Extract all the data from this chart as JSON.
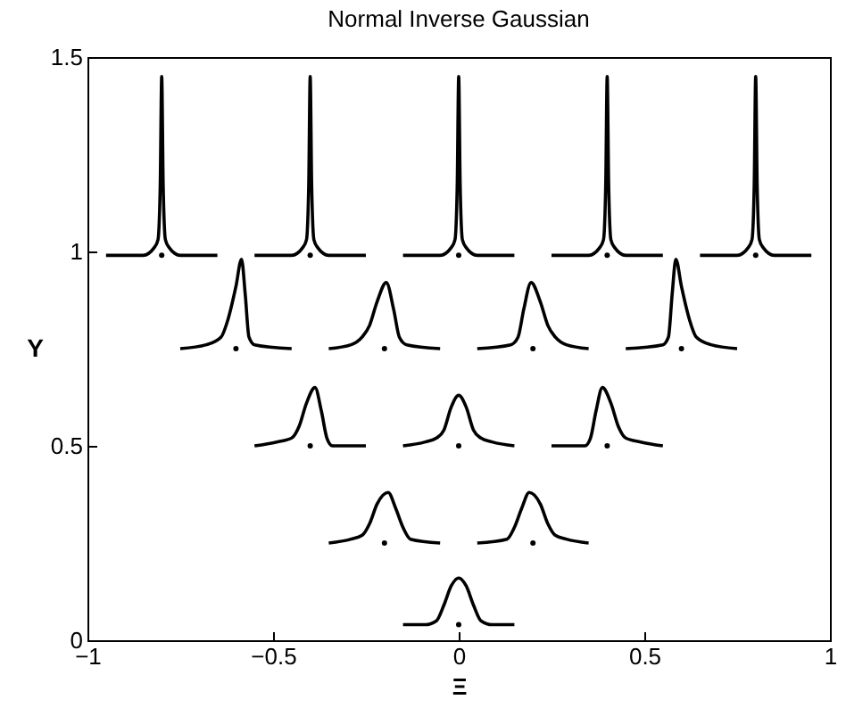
{
  "chart_data": {
    "type": "line",
    "title": "Normal Inverse Gaussian",
    "xlabel": "Ξ",
    "ylabel": "Υ",
    "xlim": [
      -1,
      1
    ],
    "xticks": [
      -1,
      -0.5,
      0,
      0.5,
      1
    ],
    "ylim": [
      0,
      1.5
    ],
    "yticks": [
      0,
      0.5,
      1,
      1.5
    ],
    "grid": false,
    "legend": false,
    "line_style": "solid",
    "series": [
      {
        "color": "#000000",
        "x": [
          -0.95,
          -0.85,
          -0.82,
          -0.81,
          -0.804,
          -0.8,
          -0.796,
          -0.79,
          -0.78,
          -0.75,
          -0.65
        ],
        "values": [
          0.99,
          0.99,
          1.01,
          1.03,
          1.17,
          1.45,
          1.17,
          1.03,
          1.01,
          0.99,
          0.99
        ]
      },
      {
        "color": "#000000",
        "x": [
          -0.55,
          -0.45,
          -0.42,
          -0.41,
          -0.404,
          -0.4,
          -0.396,
          -0.39,
          -0.38,
          -0.35,
          -0.25
        ],
        "values": [
          0.99,
          0.99,
          1.01,
          1.03,
          1.17,
          1.45,
          1.17,
          1.03,
          1.01,
          0.99,
          0.99
        ]
      },
      {
        "color": "#000000",
        "x": [
          -0.15,
          -0.05,
          -0.02,
          -0.01,
          -0.004,
          0,
          0.004,
          0.01,
          0.02,
          0.05,
          0.15
        ],
        "values": [
          0.99,
          0.99,
          1.01,
          1.03,
          1.17,
          1.45,
          1.17,
          1.03,
          1.01,
          0.99,
          0.99
        ]
      },
      {
        "color": "#000000",
        "x": [
          0.25,
          0.35,
          0.38,
          0.39,
          0.396,
          0.4,
          0.404,
          0.41,
          0.42,
          0.45,
          0.55
        ],
        "values": [
          0.99,
          0.99,
          1.01,
          1.03,
          1.17,
          1.45,
          1.17,
          1.03,
          1.01,
          0.99,
          0.99
        ]
      },
      {
        "color": "#000000",
        "x": [
          0.65,
          0.75,
          0.78,
          0.79,
          0.796,
          0.8,
          0.804,
          0.81,
          0.82,
          0.85,
          0.95
        ],
        "values": [
          0.99,
          0.99,
          1.01,
          1.03,
          1.17,
          1.45,
          1.17,
          1.03,
          1.01,
          0.99,
          0.99
        ]
      },
      {
        "color": "#000000",
        "x": [
          -0.75,
          -0.68,
          -0.64,
          -0.62,
          -0.6,
          -0.585,
          -0.575,
          -0.565,
          -0.55,
          -0.45
        ],
        "values": [
          0.75,
          0.76,
          0.78,
          0.83,
          0.91,
          0.98,
          0.89,
          0.78,
          0.76,
          0.75
        ]
      },
      {
        "color": "#000000",
        "x": [
          -0.35,
          -0.29,
          -0.26,
          -0.24,
          -0.22,
          -0.195,
          -0.175,
          -0.16,
          -0.14,
          -0.05
        ],
        "values": [
          0.75,
          0.76,
          0.78,
          0.81,
          0.87,
          0.92,
          0.85,
          0.78,
          0.76,
          0.75
        ]
      },
      {
        "color": "#000000",
        "x": [
          0.05,
          0.14,
          0.16,
          0.175,
          0.195,
          0.22,
          0.24,
          0.26,
          0.29,
          0.35
        ],
        "values": [
          0.75,
          0.76,
          0.78,
          0.85,
          0.92,
          0.87,
          0.81,
          0.78,
          0.76,
          0.75
        ]
      },
      {
        "color": "#000000",
        "x": [
          0.45,
          0.55,
          0.565,
          0.575,
          0.585,
          0.6,
          0.62,
          0.64,
          0.68,
          0.75
        ],
        "values": [
          0.75,
          0.76,
          0.78,
          0.89,
          0.98,
          0.91,
          0.83,
          0.78,
          0.76,
          0.75
        ]
      },
      {
        "color": "#000000",
        "x": [
          -0.55,
          -0.49,
          -0.45,
          -0.43,
          -0.41,
          -0.387,
          -0.37,
          -0.355,
          -0.34,
          -0.25
        ],
        "values": [
          0.5,
          0.51,
          0.52,
          0.55,
          0.61,
          0.65,
          0.59,
          0.52,
          0.5,
          0.5
        ]
      },
      {
        "color": "#000000",
        "x": [
          -0.15,
          -0.09,
          -0.06,
          -0.04,
          -0.02,
          0,
          0.02,
          0.04,
          0.06,
          0.09,
          0.15
        ],
        "values": [
          0.5,
          0.51,
          0.52,
          0.54,
          0.6,
          0.63,
          0.6,
          0.54,
          0.52,
          0.51,
          0.5
        ]
      },
      {
        "color": "#000000",
        "x": [
          0.25,
          0.34,
          0.355,
          0.37,
          0.387,
          0.41,
          0.43,
          0.45,
          0.49,
          0.55
        ],
        "values": [
          0.5,
          0.5,
          0.52,
          0.59,
          0.65,
          0.61,
          0.55,
          0.52,
          0.51,
          0.5
        ]
      },
      {
        "color": "#000000",
        "x": [
          -0.35,
          -0.29,
          -0.26,
          -0.24,
          -0.22,
          -0.19,
          -0.17,
          -0.15,
          -0.13,
          -0.05
        ],
        "values": [
          0.25,
          0.26,
          0.27,
          0.3,
          0.35,
          0.38,
          0.34,
          0.29,
          0.26,
          0.25
        ]
      },
      {
        "color": "#000000",
        "x": [
          0.05,
          0.13,
          0.15,
          0.17,
          0.19,
          0.22,
          0.24,
          0.26,
          0.29,
          0.35
        ],
        "values": [
          0.25,
          0.26,
          0.29,
          0.34,
          0.38,
          0.35,
          0.3,
          0.27,
          0.26,
          0.25
        ]
      },
      {
        "color": "#000000",
        "x": [
          -0.15,
          -0.09,
          -0.06,
          -0.04,
          -0.02,
          0,
          0.02,
          0.04,
          0.06,
          0.09,
          0.15
        ],
        "values": [
          0.04,
          0.04,
          0.05,
          0.09,
          0.14,
          0.16,
          0.14,
          0.09,
          0.05,
          0.04,
          0.04
        ]
      },
      {
        "type": "scatter",
        "color": "#000000",
        "x": [
          -0.8,
          -0.4,
          0,
          0.4,
          0.8,
          -0.6,
          -0.2,
          0.2,
          0.6,
          -0.4,
          0,
          0.4,
          -0.2,
          0.2,
          0
        ],
        "values": [
          0.99,
          0.99,
          0.99,
          0.99,
          0.99,
          0.75,
          0.75,
          0.75,
          0.75,
          0.5,
          0.5,
          0.5,
          0.25,
          0.25,
          0.04
        ]
      }
    ]
  }
}
